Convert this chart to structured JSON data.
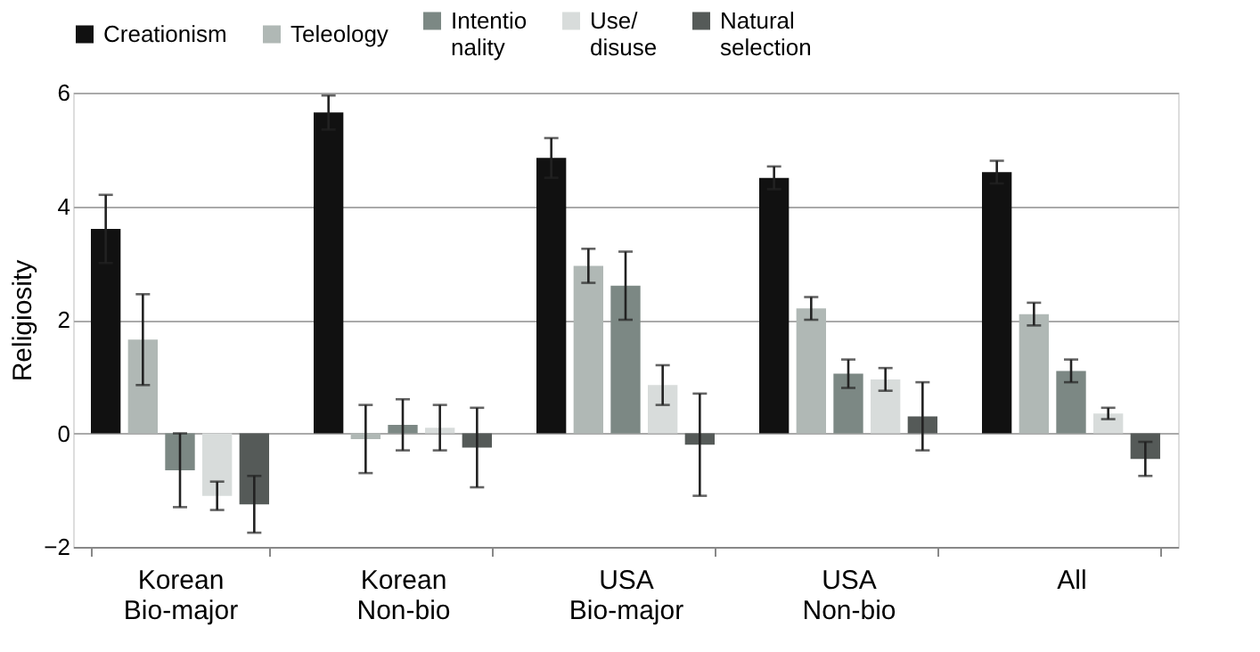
{
  "chart_data": {
    "type": "bar",
    "ylabel": "Religiosity",
    "categories": [
      "Korean\nBio-major",
      "Korean\nNon-bio",
      "USA\nBio-major",
      "USA\nNon-bio",
      "All"
    ],
    "series": [
      {
        "name": "Creationism",
        "color": "#111111",
        "values": [
          3.6,
          5.65,
          4.85,
          4.5,
          4.6
        ],
        "errors": [
          0.6,
          0.3,
          0.35,
          0.2,
          0.2
        ]
      },
      {
        "name": "Teleology",
        "color": "#b0b8b5",
        "values": [
          1.65,
          -0.1,
          2.95,
          2.2,
          2.1
        ],
        "errors": [
          0.8,
          0.6,
          0.3,
          0.2,
          0.2
        ]
      },
      {
        "name": "Intentio\nnality",
        "color": "#7c8884",
        "values": [
          -0.65,
          0.15,
          2.6,
          1.05,
          1.1
        ],
        "errors": [
          0.65,
          0.45,
          0.6,
          0.25,
          0.2
        ]
      },
      {
        "name": "Use/\ndisuse",
        "color": "#d8dcdb",
        "values": [
          -1.1,
          0.1,
          0.85,
          0.95,
          0.35
        ],
        "errors": [
          0.25,
          0.4,
          0.35,
          0.2,
          0.1
        ]
      },
      {
        "name": "Natural\nselection",
        "color": "#555a58",
        "values": [
          -1.25,
          -0.25,
          -0.2,
          0.3,
          -0.45
        ],
        "errors": [
          0.5,
          0.7,
          0.9,
          0.6,
          0.3
        ]
      }
    ],
    "ylim": [
      -2,
      6
    ],
    "yticks": [
      -2,
      0,
      2,
      4,
      6
    ],
    "grid": "y",
    "legend": "top"
  }
}
